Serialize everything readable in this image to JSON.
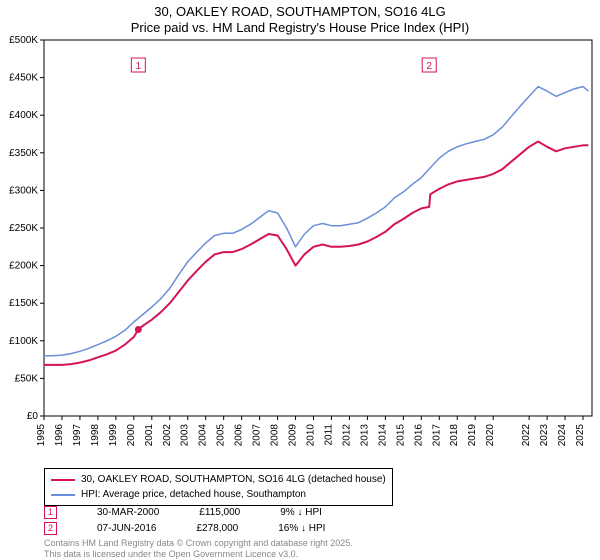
{
  "title": {
    "line1": "30, OAKLEY ROAD, SOUTHAMPTON, SO16 4LG",
    "line2": "Price paid vs. HM Land Registry's House Price Index (HPI)"
  },
  "chart": {
    "type": "line",
    "background_color": "#ffffff",
    "plot_background_color": "#ffffff",
    "plot_border_color": "#000000",
    "marker_box_color": "#d4145a",
    "xlim": [
      1995,
      2025.5
    ],
    "ylim": [
      0,
      500000
    ],
    "xticks": [
      1995,
      1996,
      1997,
      1998,
      1999,
      2000,
      2001,
      2002,
      2003,
      2004,
      2005,
      2006,
      2007,
      2008,
      2009,
      2010,
      2011,
      2012,
      2013,
      2014,
      2015,
      2016,
      2017,
      2018,
      2019,
      2020,
      2022,
      2023,
      2024,
      2025
    ],
    "yticks": [
      0,
      50000,
      100000,
      150000,
      200000,
      250000,
      300000,
      350000,
      400000,
      450000,
      500000
    ],
    "ytick_labels": [
      "£0",
      "£50K",
      "£100K",
      "£150K",
      "£200K",
      "£250K",
      "£300K",
      "£350K",
      "£400K",
      "£450K",
      "£500K"
    ],
    "axis_fontsize": 10,
    "series": [
      {
        "name": "property",
        "label": "30, OAKLEY ROAD, SOUTHAMPTON, SO16 4LG (detached house)",
        "color": "#d4145a",
        "width": 2,
        "data": [
          [
            1995.0,
            68000
          ],
          [
            1995.5,
            68000
          ],
          [
            1996.0,
            68000
          ],
          [
            1996.5,
            69000
          ],
          [
            1997.0,
            71000
          ],
          [
            1997.5,
            74000
          ],
          [
            1998.0,
            78000
          ],
          [
            1998.5,
            82000
          ],
          [
            1999.0,
            87000
          ],
          [
            1999.5,
            95000
          ],
          [
            2000.0,
            105000
          ],
          [
            2000.25,
            115000
          ],
          [
            2000.5,
            120000
          ],
          [
            2001.0,
            128000
          ],
          [
            2001.5,
            138000
          ],
          [
            2002.0,
            150000
          ],
          [
            2002.5,
            165000
          ],
          [
            2003.0,
            180000
          ],
          [
            2003.5,
            193000
          ],
          [
            2004.0,
            205000
          ],
          [
            2004.5,
            215000
          ],
          [
            2005.0,
            218000
          ],
          [
            2005.5,
            218000
          ],
          [
            2006.0,
            222000
          ],
          [
            2006.5,
            228000
          ],
          [
            2007.0,
            235000
          ],
          [
            2007.5,
            242000
          ],
          [
            2008.0,
            240000
          ],
          [
            2008.5,
            222000
          ],
          [
            2009.0,
            200000
          ],
          [
            2009.5,
            215000
          ],
          [
            2010.0,
            225000
          ],
          [
            2010.5,
            228000
          ],
          [
            2011.0,
            225000
          ],
          [
            2011.5,
            225000
          ],
          [
            2012.0,
            226000
          ],
          [
            2012.5,
            228000
          ],
          [
            2013.0,
            232000
          ],
          [
            2013.5,
            238000
          ],
          [
            2014.0,
            245000
          ],
          [
            2014.5,
            255000
          ],
          [
            2015.0,
            262000
          ],
          [
            2015.5,
            270000
          ],
          [
            2016.0,
            276000
          ],
          [
            2016.44,
            278000
          ],
          [
            2016.5,
            295000
          ],
          [
            2017.0,
            302000
          ],
          [
            2017.5,
            308000
          ],
          [
            2018.0,
            312000
          ],
          [
            2018.5,
            314000
          ],
          [
            2019.0,
            316000
          ],
          [
            2019.5,
            318000
          ],
          [
            2020.0,
            322000
          ],
          [
            2020.5,
            328000
          ],
          [
            2021.0,
            338000
          ],
          [
            2021.5,
            348000
          ],
          [
            2022.0,
            358000
          ],
          [
            2022.5,
            365000
          ],
          [
            2023.0,
            358000
          ],
          [
            2023.5,
            352000
          ],
          [
            2024.0,
            356000
          ],
          [
            2024.5,
            358000
          ],
          [
            2025.0,
            360000
          ],
          [
            2025.3,
            360000
          ]
        ],
        "sale_marker": {
          "x": 2000.25,
          "y": 115000
        }
      },
      {
        "name": "hpi",
        "label": "HPI: Average price, detached house, Southampton",
        "color": "#6a8fd8",
        "width": 1.5,
        "data": [
          [
            1995.0,
            80000
          ],
          [
            1995.5,
            80000
          ],
          [
            1996.0,
            81000
          ],
          [
            1996.5,
            83000
          ],
          [
            1997.0,
            86000
          ],
          [
            1997.5,
            90000
          ],
          [
            1998.0,
            95000
          ],
          [
            1998.5,
            100000
          ],
          [
            1999.0,
            106000
          ],
          [
            1999.5,
            114000
          ],
          [
            2000.0,
            125000
          ],
          [
            2000.5,
            135000
          ],
          [
            2001.0,
            145000
          ],
          [
            2001.5,
            156000
          ],
          [
            2002.0,
            170000
          ],
          [
            2002.5,
            188000
          ],
          [
            2003.0,
            205000
          ],
          [
            2003.5,
            218000
          ],
          [
            2004.0,
            230000
          ],
          [
            2004.5,
            240000
          ],
          [
            2005.0,
            243000
          ],
          [
            2005.5,
            243000
          ],
          [
            2006.0,
            248000
          ],
          [
            2006.5,
            255000
          ],
          [
            2007.0,
            264000
          ],
          [
            2007.5,
            273000
          ],
          [
            2008.0,
            270000
          ],
          [
            2008.5,
            250000
          ],
          [
            2009.0,
            225000
          ],
          [
            2009.5,
            242000
          ],
          [
            2010.0,
            253000
          ],
          [
            2010.5,
            256000
          ],
          [
            2011.0,
            253000
          ],
          [
            2011.5,
            253000
          ],
          [
            2012.0,
            255000
          ],
          [
            2012.5,
            257000
          ],
          [
            2013.0,
            263000
          ],
          [
            2013.5,
            270000
          ],
          [
            2014.0,
            278000
          ],
          [
            2014.5,
            290000
          ],
          [
            2015.0,
            298000
          ],
          [
            2015.5,
            308000
          ],
          [
            2016.0,
            317000
          ],
          [
            2016.5,
            330000
          ],
          [
            2017.0,
            343000
          ],
          [
            2017.5,
            352000
          ],
          [
            2018.0,
            358000
          ],
          [
            2018.5,
            362000
          ],
          [
            2019.0,
            365000
          ],
          [
            2019.5,
            368000
          ],
          [
            2020.0,
            374000
          ],
          [
            2020.5,
            384000
          ],
          [
            2021.0,
            398000
          ],
          [
            2021.5,
            412000
          ],
          [
            2022.0,
            425000
          ],
          [
            2022.5,
            438000
          ],
          [
            2023.0,
            432000
          ],
          [
            2023.5,
            425000
          ],
          [
            2024.0,
            430000
          ],
          [
            2024.5,
            435000
          ],
          [
            2025.0,
            438000
          ],
          [
            2025.3,
            432000
          ]
        ]
      }
    ],
    "annotations": [
      {
        "id": "1",
        "x": 2000.25
      },
      {
        "id": "2",
        "x": 2016.44
      }
    ]
  },
  "legend": {
    "items": [
      {
        "color": "#d4145a",
        "label": "30, OAKLEY ROAD, SOUTHAMPTON, SO16 4LG (detached house)"
      },
      {
        "color": "#6a8fd8",
        "label": "HPI: Average price, detached house, Southampton"
      }
    ]
  },
  "sales": [
    {
      "id": "1",
      "date": "30-MAR-2000",
      "price": "£115,000",
      "diff": "9% ↓ HPI"
    },
    {
      "id": "2",
      "date": "07-JUN-2016",
      "price": "£278,000",
      "diff": "16% ↓ HPI"
    }
  ],
  "license": {
    "line1": "Contains HM Land Registry data © Crown copyright and database right 2025.",
    "line2": "This data is licensed under the Open Government Licence v3.0."
  }
}
